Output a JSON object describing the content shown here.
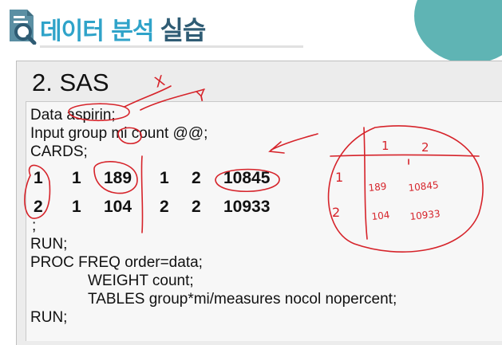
{
  "header": {
    "title_main": "데이터 분석",
    "title_accent": "실습"
  },
  "section": {
    "title": "2. SAS"
  },
  "code_upper": [
    "Data aspirin;",
    "Input group mi count @@;",
    "CARDS;"
  ],
  "data_rows": [
    [
      "1",
      "1",
      "189",
      "1",
      "2",
      "10845"
    ],
    [
      "2",
      "1",
      "104",
      "2",
      "2",
      "10933"
    ]
  ],
  "semicolon": ";",
  "code_lower": [
    "RUN;",
    "PROC FREQ order=data;",
    "WEIGHT count;",
    "TABLES group*mi/measures nocol nopercent;",
    "RUN;"
  ],
  "annotations": {
    "x_label": "X",
    "y_label": "Y",
    "col_1": "1",
    "col_2": "2",
    "row_1": "1",
    "row_2": "2",
    "cell_11": "189",
    "cell_12": "10845",
    "cell_21": "104",
    "cell_22": "10933",
    "ink_color": "#d6232a"
  },
  "colors": {
    "title_main": "#2fa3c9",
    "title_accent": "#2f5c74",
    "corner_deco": "#5fb4b4",
    "annotation": "#d6232a"
  }
}
